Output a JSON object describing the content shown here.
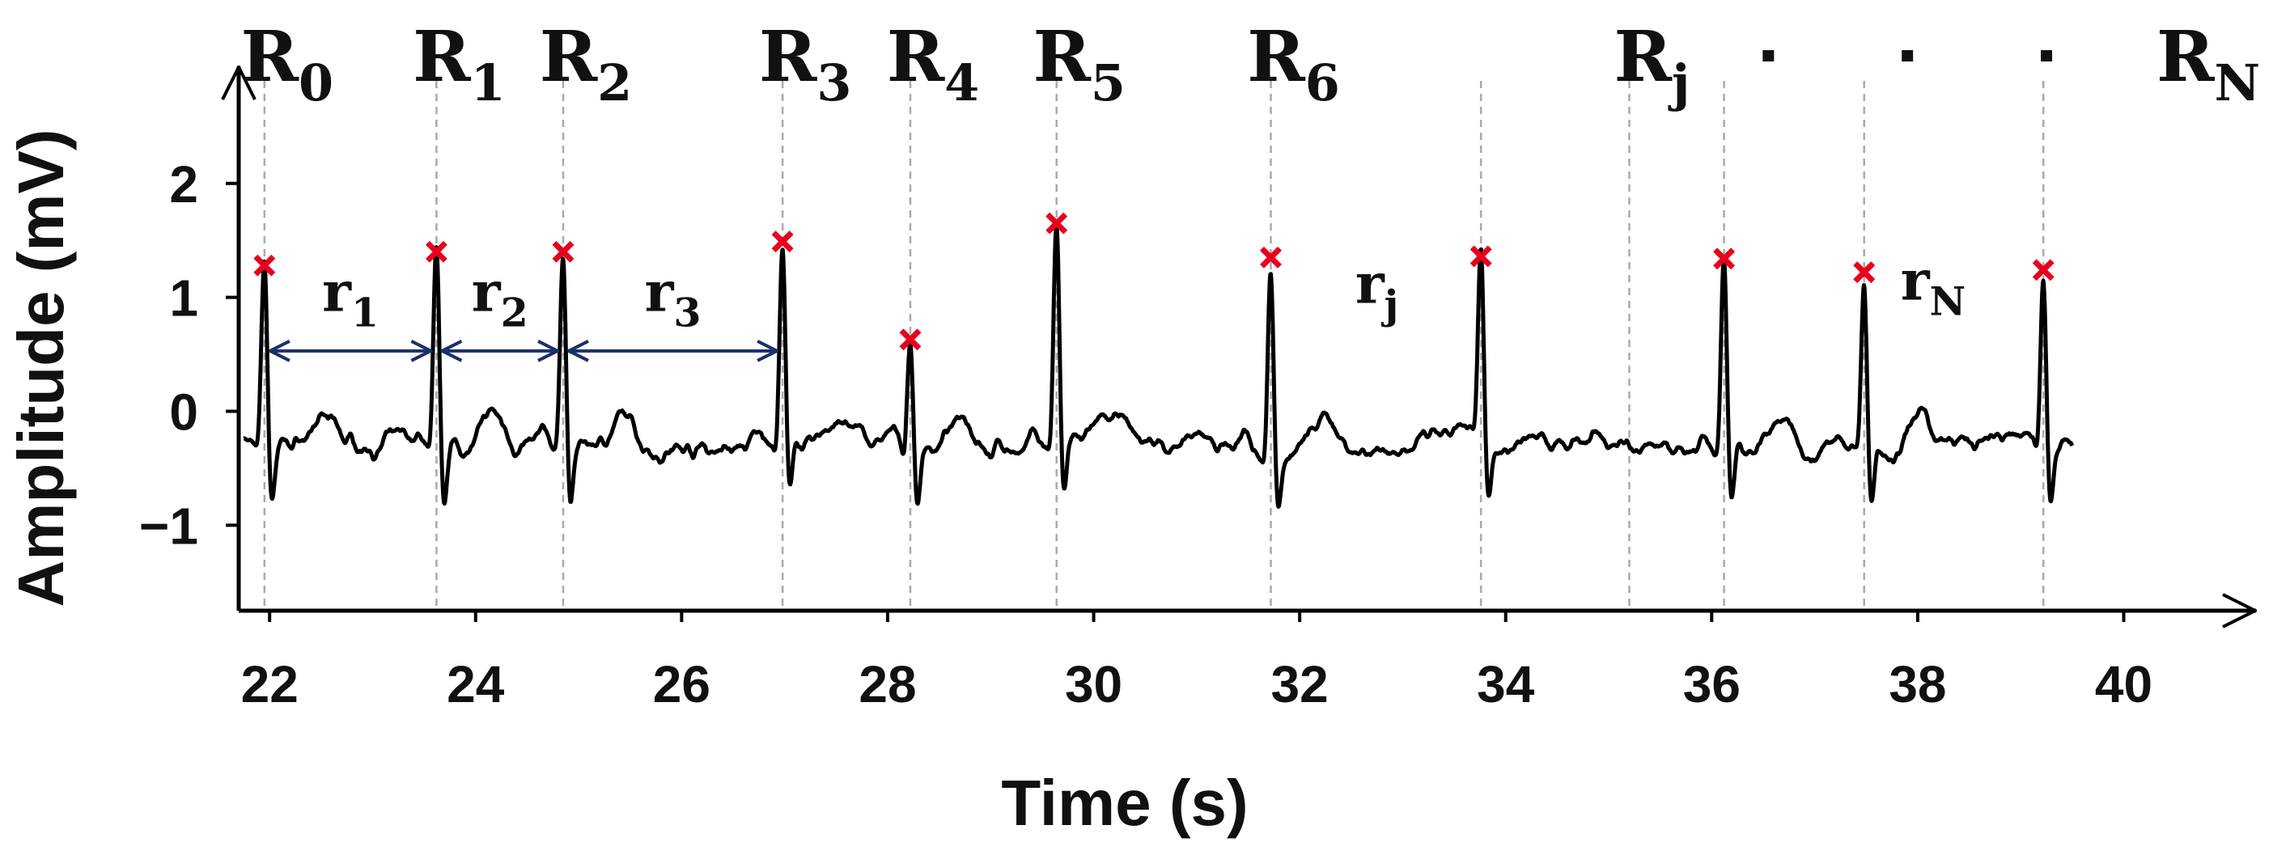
{
  "chart_data": {
    "type": "line",
    "xlabel": "Time (s)",
    "ylabel": "Amplitude (mV)",
    "xlim": [
      21.7,
      41.3
    ],
    "ylim": [
      -1.75,
      2.9
    ],
    "xticks": [
      22,
      24,
      26,
      28,
      30,
      32,
      34,
      36,
      38,
      40
    ],
    "yticks": [
      {
        "value": 2,
        "label": "2"
      },
      {
        "value": 1,
        "label": "1"
      },
      {
        "value": 0,
        "label": "0"
      },
      {
        "value": -1,
        "label": "−1"
      }
    ],
    "baseline_mv": -0.3,
    "signal_end_s": 39.5,
    "r_peaks": [
      {
        "t": 21.95,
        "amp": 1.28,
        "label": "R",
        "sub": "0"
      },
      {
        "t": 23.62,
        "amp": 1.4,
        "label": "R",
        "sub": "1"
      },
      {
        "t": 24.85,
        "amp": 1.4,
        "label": "R",
        "sub": "2"
      },
      {
        "t": 26.98,
        "amp": 1.49,
        "label": "R",
        "sub": "3"
      },
      {
        "t": 28.22,
        "amp": 0.63,
        "label": "R",
        "sub": "4"
      },
      {
        "t": 29.64,
        "amp": 1.65,
        "label": "R",
        "sub": "5"
      },
      {
        "t": 31.72,
        "amp": 1.35,
        "label": "R",
        "sub": "6"
      },
      {
        "t": 33.76,
        "amp": 1.36,
        "label": "",
        "sub": ""
      },
      {
        "t": 36.12,
        "amp": 1.34,
        "label": "",
        "sub": ""
      },
      {
        "t": 37.48,
        "amp": 1.22,
        "label": "",
        "sub": ""
      },
      {
        "t": 39.22,
        "amp": 1.24,
        "label": "",
        "sub": ""
      }
    ],
    "extra_guides_t": [
      35.2
    ],
    "rj_label": {
      "label": "R",
      "sub": "j",
      "t": 35.2
    },
    "rn_label": {
      "label": "R",
      "sub": "N",
      "t": 40.9
    },
    "ellipsis_dots_t": [
      36.55,
      37.9,
      39.25
    ],
    "intervals": [
      {
        "from_index": 0,
        "to_index": 1,
        "label": "r",
        "sub": "1"
      },
      {
        "from_index": 1,
        "to_index": 2,
        "label": "r",
        "sub": "2"
      },
      {
        "from_index": 2,
        "to_index": 3,
        "label": "r",
        "sub": "3"
      }
    ],
    "free_interval_labels": [
      {
        "t": 32.75,
        "amp": 0.95,
        "label": "r",
        "sub": "j"
      },
      {
        "t": 38.15,
        "amp": 0.98,
        "label": "r",
        "sub": "N"
      }
    ],
    "colors": {
      "signal": "#000000",
      "peak_marker": "#e8001c",
      "arrow": "#1a2f6b",
      "guide": "#aaaaaa"
    }
  }
}
